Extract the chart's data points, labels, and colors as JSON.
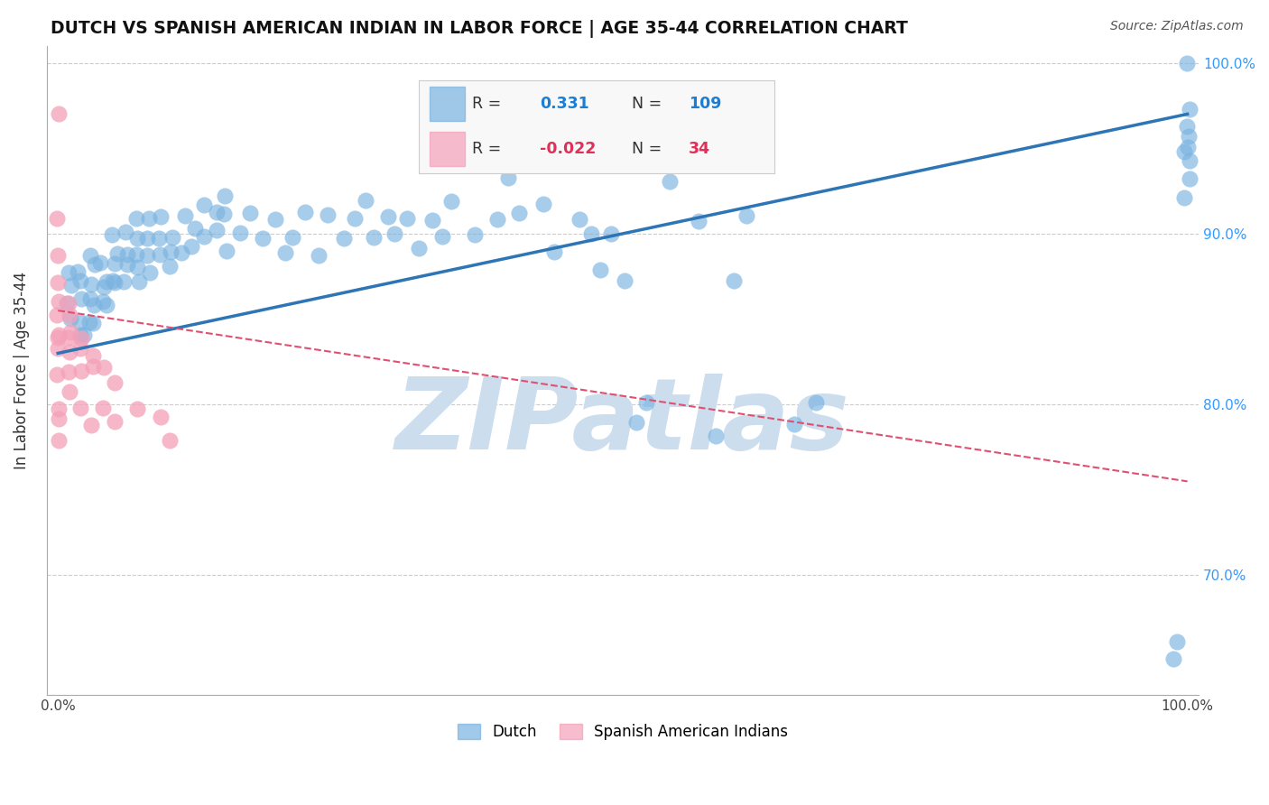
{
  "title": "DUTCH VS SPANISH AMERICAN INDIAN IN LABOR FORCE | AGE 35-44 CORRELATION CHART",
  "source_text": "Source: ZipAtlas.com",
  "ylabel": "In Labor Force | Age 35-44",
  "dutch_R": 0.331,
  "dutch_N": 109,
  "spanish_R": -0.022,
  "spanish_N": 34,
  "dutch_color": "#7ab3e0",
  "spanish_color": "#f4a0b8",
  "dutch_line_color": "#2e75b6",
  "spanish_line_color": "#e05070",
  "background_color": "#ffffff",
  "watermark_text": "ZIPatlas",
  "watermark_color": "#ccdded",
  "xlim": [
    -1,
    101
  ],
  "ylim": [
    63,
    101
  ],
  "yticks": [
    70,
    80,
    90,
    100
  ],
  "xticks": [
    0,
    20,
    40,
    60,
    80,
    100
  ],
  "dutch_line_x0": 0,
  "dutch_line_y0": 83.0,
  "dutch_line_x1": 100,
  "dutch_line_y1": 97.0,
  "spanish_line_x0": 0,
  "spanish_line_y0": 85.5,
  "spanish_line_x1": 100,
  "spanish_line_y1": 75.5,
  "dutch_x": [
    1,
    1,
    1,
    1,
    2,
    2,
    2,
    2,
    2,
    2,
    3,
    3,
    3,
    3,
    3,
    3,
    3,
    4,
    4,
    4,
    4,
    4,
    5,
    5,
    5,
    5,
    5,
    6,
    6,
    6,
    6,
    7,
    7,
    7,
    7,
    7,
    8,
    8,
    8,
    8,
    9,
    9,
    9,
    10,
    10,
    10,
    11,
    11,
    12,
    12,
    13,
    13,
    14,
    14,
    15,
    15,
    15,
    16,
    17,
    18,
    19,
    20,
    21,
    22,
    23,
    24,
    25,
    26,
    27,
    28,
    29,
    30,
    31,
    32,
    33,
    34,
    35,
    37,
    39,
    40,
    41,
    43,
    44,
    46,
    47,
    48,
    49,
    50,
    51,
    52,
    54,
    55,
    57,
    58,
    60,
    61,
    65,
    67,
    99,
    99,
    100,
    100,
    100,
    100,
    100,
    100,
    100,
    100,
    100
  ],
  "dutch_y": [
    86,
    87,
    88,
    85,
    84,
    86,
    87,
    88,
    85,
    84,
    85,
    86,
    87,
    85,
    86,
    88,
    89,
    86,
    87,
    88,
    87,
    86,
    87,
    88,
    89,
    90,
    87,
    88,
    89,
    90,
    87,
    88,
    89,
    90,
    91,
    87,
    88,
    90,
    91,
    89,
    89,
    90,
    91,
    88,
    89,
    90,
    89,
    91,
    89,
    90,
    90,
    92,
    90,
    91,
    89,
    91,
    92,
    90,
    91,
    90,
    91,
    89,
    90,
    91,
    89,
    91,
    90,
    91,
    92,
    90,
    91,
    90,
    91,
    89,
    91,
    90,
    92,
    90,
    91,
    93,
    91,
    92,
    89,
    91,
    90,
    88,
    90,
    87,
    79,
    80,
    93,
    94,
    91,
    78,
    87,
    91,
    79,
    80,
    65,
    66,
    95,
    96,
    97,
    100,
    95,
    96,
    94,
    93,
    92
  ],
  "spanish_x": [
    0,
    0,
    0,
    0,
    0,
    0,
    0,
    0,
    0,
    0,
    0,
    0,
    0,
    1,
    1,
    1,
    1,
    1,
    1,
    1,
    2,
    2,
    2,
    2,
    3,
    3,
    3,
    4,
    4,
    5,
    5,
    7,
    9,
    10
  ],
  "spanish_y": [
    97,
    91,
    89,
    87,
    86,
    85,
    84,
    84,
    83,
    82,
    80,
    79,
    78,
    86,
    85,
    84,
    84,
    83,
    82,
    81,
    84,
    83,
    82,
    80,
    83,
    82,
    79,
    82,
    80,
    81,
    79,
    80,
    79,
    78
  ]
}
